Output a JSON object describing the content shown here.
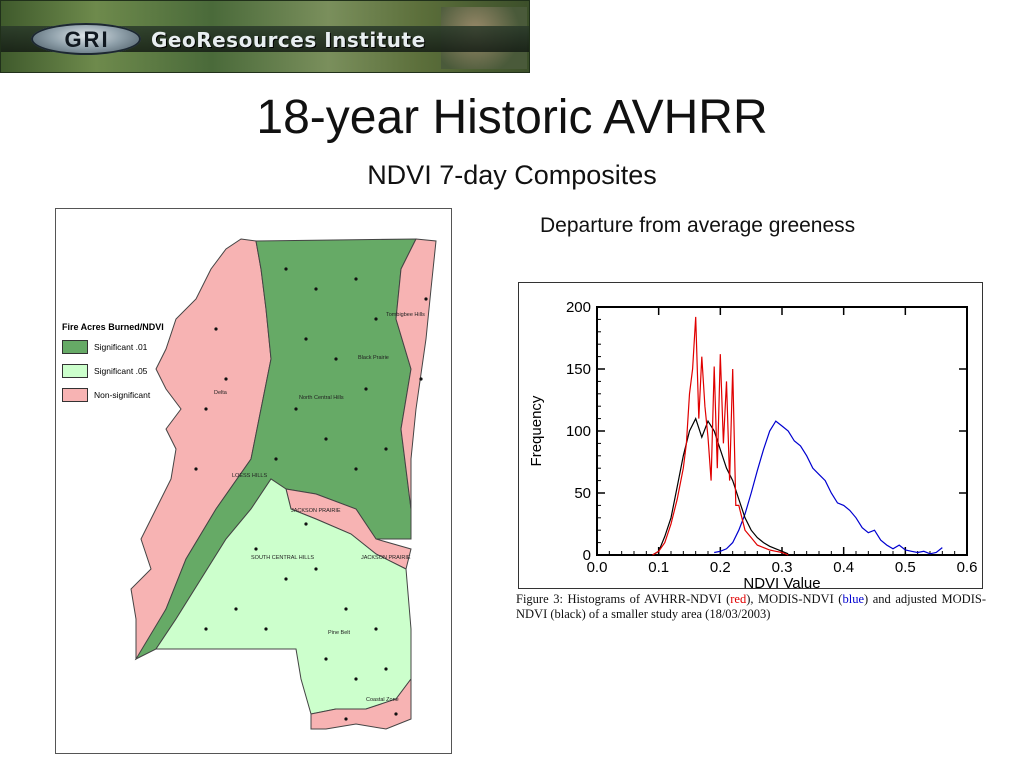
{
  "banner": {
    "logo_text": "GRI",
    "institute": "GeoResources Institute"
  },
  "title": "18-year Historic AVHRR",
  "subtitle": "NDVI 7-day Composites",
  "caption_top": "Departure from average greeness",
  "map": {
    "legend_title": "Fire Acres Burned/NDVI",
    "legend": [
      {
        "label": "Significant .01",
        "color": "#66aa66"
      },
      {
        "label": "Significant .05",
        "color": "#ccffcc"
      },
      {
        "label": "Non-significant",
        "color": "#f7b3b3"
      }
    ],
    "region_labels": [
      "Tombigbee Hills",
      "Black Prairie",
      "North Central Hills",
      "Delta",
      "LOESS HILLS",
      "JACKSON PRAIRIE",
      "SOUTH CENTRAL HILLS",
      "JACKSON PRAIRIE",
      "Pine Belt",
      "Coastal Zone"
    ]
  },
  "figure_caption": {
    "p1": "Figure 3: Histograms of AVHRR-NDVI (",
    "red": "red",
    "p2": "), MODIS-NDVI (",
    "blue": "blue",
    "p3": ") and adjusted MODIS-NDVI (black) of a smaller study area (18/03/2003)"
  },
  "chart_data": {
    "type": "line",
    "title": "",
    "xlabel": "NDVI Value",
    "ylabel": "Frequency",
    "xlim": [
      0.0,
      0.6
    ],
    "ylim": [
      0,
      200
    ],
    "xticks": [
      "0.0",
      "0.1",
      "0.2",
      "0.3",
      "0.4",
      "0.5",
      "0.6"
    ],
    "yticks": [
      "0",
      "50",
      "100",
      "150",
      "200"
    ],
    "series": [
      {
        "color": "#e00000",
        "x": [
          0.09,
          0.1,
          0.11,
          0.12,
          0.13,
          0.14,
          0.145,
          0.15,
          0.155,
          0.16,
          0.165,
          0.17,
          0.175,
          0.18,
          0.185,
          0.19,
          0.195,
          0.2,
          0.205,
          0.21,
          0.215,
          0.22,
          0.225,
          0.23,
          0.24,
          0.25,
          0.26,
          0.27,
          0.28,
          0.29,
          0.3,
          0.31
        ],
        "y": [
          0,
          3,
          10,
          25,
          45,
          70,
          90,
          130,
          150,
          192,
          110,
          160,
          120,
          95,
          60,
          152,
          70,
          162,
          90,
          140,
          60,
          150,
          40,
          40,
          20,
          14,
          8,
          6,
          4,
          3,
          2,
          0
        ]
      },
      {
        "color": "#000000",
        "x": [
          0.09,
          0.1,
          0.11,
          0.12,
          0.13,
          0.14,
          0.15,
          0.16,
          0.17,
          0.18,
          0.19,
          0.2,
          0.21,
          0.22,
          0.23,
          0.24,
          0.25,
          0.26,
          0.27,
          0.28,
          0.29,
          0.3,
          0.31
        ],
        "y": [
          0,
          3,
          15,
          30,
          55,
          80,
          100,
          110,
          95,
          108,
          100,
          85,
          70,
          60,
          45,
          30,
          20,
          14,
          10,
          7,
          5,
          3,
          1
        ]
      },
      {
        "color": "#0000d0",
        "x": [
          0.19,
          0.2,
          0.21,
          0.22,
          0.23,
          0.24,
          0.25,
          0.26,
          0.27,
          0.28,
          0.29,
          0.3,
          0.31,
          0.32,
          0.33,
          0.34,
          0.35,
          0.36,
          0.37,
          0.38,
          0.39,
          0.4,
          0.41,
          0.42,
          0.43,
          0.44,
          0.45,
          0.46,
          0.47,
          0.48,
          0.49,
          0.5,
          0.51,
          0.52,
          0.53,
          0.54,
          0.55,
          0.56
        ],
        "y": [
          2,
          3,
          5,
          10,
          20,
          33,
          50,
          68,
          85,
          100,
          108,
          104,
          100,
          92,
          88,
          80,
          70,
          65,
          60,
          50,
          42,
          40,
          36,
          30,
          22,
          18,
          20,
          12,
          8,
          5,
          8,
          4,
          3,
          2,
          3,
          1,
          2,
          6
        ]
      }
    ]
  }
}
